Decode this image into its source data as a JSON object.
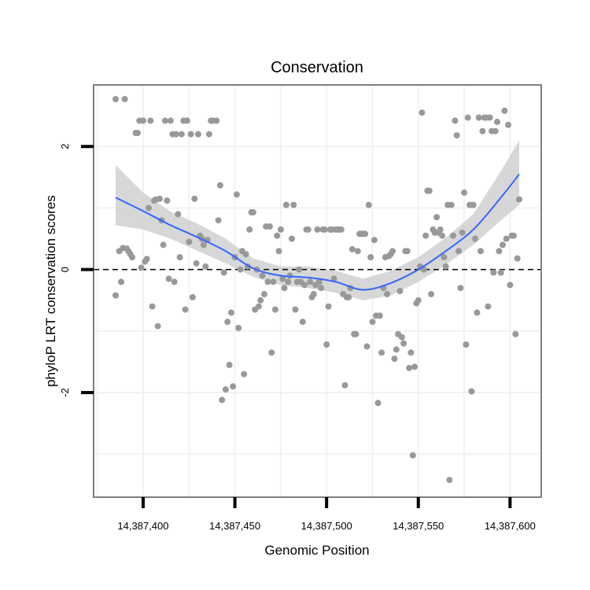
{
  "chart_data": {
    "type": "scatter",
    "title": "Conservation",
    "xlabel": "Genomic Position",
    "ylabel": "phyloP LRT conservation scores",
    "xlim": [
      14387373,
      14387617
    ],
    "ylim": [
      -3.7,
      3.0
    ],
    "grid": true,
    "x_ticks": [
      14387400,
      14387450,
      14387500,
      14387550,
      14387600
    ],
    "x_tick_labels": [
      "14,387,400",
      "14,387,450",
      "14,387,500",
      "14,387,550",
      "14,387,600"
    ],
    "y_ticks": [
      -2,
      0,
      2
    ],
    "y_tick_labels": [
      "-2",
      "0",
      "2"
    ],
    "reference_line": {
      "y": 0,
      "style": "dashed",
      "color": "#000000"
    },
    "colors": {
      "points": "#999999",
      "smooth": "#3366ff",
      "band": "#d3d3d3",
      "panel_border": "#7f7f7f",
      "grid": "#f2f2f2"
    },
    "series": [
      {
        "name": "scores",
        "points": [
          [
            14387385,
            2.77
          ],
          [
            14387390,
            2.77
          ],
          [
            14387385,
            -0.42
          ],
          [
            14387387,
            0.3
          ],
          [
            14387388,
            -0.2
          ],
          [
            14387389,
            0.35
          ],
          [
            14387391,
            0.34
          ],
          [
            14387392,
            0.3
          ],
          [
            14387393,
            0.25
          ],
          [
            14387394,
            0.2
          ],
          [
            14387396,
            2.22
          ],
          [
            14387397,
            2.22
          ],
          [
            14387398,
            2.42
          ],
          [
            14387399,
            0.03
          ],
          [
            14387400,
            2.42
          ],
          [
            14387401,
            0.13
          ],
          [
            14387402,
            0.17
          ],
          [
            14387403,
            1.0
          ],
          [
            14387404,
            2.42
          ],
          [
            14387405,
            -0.6
          ],
          [
            14387406,
            1.12
          ],
          [
            14387407,
            1.14
          ],
          [
            14387408,
            -0.92
          ],
          [
            14387409,
            1.15
          ],
          [
            14387410,
            0.8
          ],
          [
            14387411,
            0.4
          ],
          [
            14387412,
            2.42
          ],
          [
            14387413,
            1.12
          ],
          [
            14387414,
            -0.15
          ],
          [
            14387415,
            2.42
          ],
          [
            14387416,
            2.2
          ],
          [
            14387417,
            -0.2
          ],
          [
            14387418,
            2.2
          ],
          [
            14387419,
            0.9
          ],
          [
            14387420,
            0.2
          ],
          [
            14387421,
            2.2
          ],
          [
            14387422,
            2.42
          ],
          [
            14387423,
            -0.65
          ],
          [
            14387424,
            2.42
          ],
          [
            14387425,
            0.45
          ],
          [
            14387426,
            2.2
          ],
          [
            14387427,
            -0.45
          ],
          [
            14387428,
            1.15
          ],
          [
            14387429,
            0.1
          ],
          [
            14387430,
            2.2
          ],
          [
            14387431,
            0.55
          ],
          [
            14387432,
            0.5
          ],
          [
            14387433,
            0.4
          ],
          [
            14387434,
            0.05
          ],
          [
            14387435,
            0.48
          ],
          [
            14387436,
            2.2
          ],
          [
            14387437,
            2.42
          ],
          [
            14387438,
            2.42
          ],
          [
            14387440,
            2.42
          ],
          [
            14387441,
            0.8
          ],
          [
            14387442,
            1.37
          ],
          [
            14387443,
            -2.12
          ],
          [
            14387444,
            -0.05
          ],
          [
            14387445,
            -1.95
          ],
          [
            14387446,
            -0.85
          ],
          [
            14387447,
            -1.55
          ],
          [
            14387448,
            -0.7
          ],
          [
            14387449,
            -1.9
          ],
          [
            14387450,
            0.2
          ],
          [
            14387451,
            1.22
          ],
          [
            14387452,
            -0.95
          ],
          [
            14387453,
            0.0
          ],
          [
            14387454,
            0.3
          ],
          [
            14387455,
            -1.7
          ],
          [
            14387456,
            0.25
          ],
          [
            14387457,
            0.05
          ],
          [
            14387458,
            0.65
          ],
          [
            14387459,
            0.93
          ],
          [
            14387460,
            0.93
          ],
          [
            14387461,
            -0.65
          ],
          [
            14387462,
            0.0
          ],
          [
            14387463,
            -0.6
          ],
          [
            14387464,
            -0.5
          ],
          [
            14387465,
            -0.1
          ],
          [
            14387466,
            -0.4
          ],
          [
            14387467,
            0.7
          ],
          [
            14387468,
            -0.2
          ],
          [
            14387469,
            0.7
          ],
          [
            14387470,
            -1.35
          ],
          [
            14387471,
            -0.2
          ],
          [
            14387472,
            -0.65
          ],
          [
            14387473,
            0.55
          ],
          [
            14387474,
            0.3
          ],
          [
            14387475,
            0.65
          ],
          [
            14387476,
            -0.15
          ],
          [
            14387477,
            -0.3
          ],
          [
            14387478,
            1.05
          ],
          [
            14387479,
            -0.2
          ],
          [
            14387480,
            -0.1
          ],
          [
            14387481,
            0.5
          ],
          [
            14387482,
            1.05
          ],
          [
            14387483,
            -0.65
          ],
          [
            14387484,
            -0.2
          ],
          [
            14387485,
            0.0
          ],
          [
            14387486,
            -0.2
          ],
          [
            14387487,
            -0.85
          ],
          [
            14387488,
            -0.25
          ],
          [
            14387489,
            0.65
          ],
          [
            14387490,
            0.65
          ],
          [
            14387491,
            -0.2
          ],
          [
            14387492,
            -0.45
          ],
          [
            14387493,
            -0.4
          ],
          [
            14387494,
            -0.25
          ],
          [
            14387495,
            0.65
          ],
          [
            14387496,
            -0.2
          ],
          [
            14387497,
            -0.3
          ],
          [
            14387498,
            0.65
          ],
          [
            14387499,
            0.65
          ],
          [
            14387500,
            -1.22
          ],
          [
            14387501,
            -0.6
          ],
          [
            14387502,
            0.65
          ],
          [
            14387503,
            0.65
          ],
          [
            14387504,
            -0.15
          ],
          [
            14387505,
            0.65
          ],
          [
            14387506,
            0.65
          ],
          [
            14387507,
            0.65
          ],
          [
            14387508,
            0.65
          ],
          [
            14387509,
            -0.4
          ],
          [
            14387510,
            -1.88
          ],
          [
            14387511,
            -0.45
          ],
          [
            14387512,
            -0.45
          ],
          [
            14387513,
            -0.3
          ],
          [
            14387514,
            0.33
          ],
          [
            14387515,
            -1.05
          ],
          [
            14387516,
            -1.05
          ],
          [
            14387517,
            0.3
          ],
          [
            14387518,
            0.58
          ],
          [
            14387519,
            0.58
          ],
          [
            14387520,
            0.58
          ],
          [
            14387521,
            0.58
          ],
          [
            14387522,
            -1.25
          ],
          [
            14387523,
            1.05
          ],
          [
            14387524,
            0.2
          ],
          [
            14387525,
            -0.85
          ],
          [
            14387526,
            0.48
          ],
          [
            14387527,
            -0.75
          ],
          [
            14387528,
            -2.17
          ],
          [
            14387529,
            -0.75
          ],
          [
            14387530,
            -1.35
          ],
          [
            14387531,
            -0.3
          ],
          [
            14387532,
            0.2
          ],
          [
            14387533,
            -0.4
          ],
          [
            14387534,
            0.22
          ],
          [
            14387535,
            0.25
          ],
          [
            14387536,
            0.3
          ],
          [
            14387537,
            -1.45
          ],
          [
            14387538,
            -1.3
          ],
          [
            14387539,
            -1.05
          ],
          [
            14387540,
            -0.35
          ],
          [
            14387541,
            -1.1
          ],
          [
            14387542,
            -1.2
          ],
          [
            14387543,
            0.3
          ],
          [
            14387544,
            0.3
          ],
          [
            14387545,
            -1.6
          ],
          [
            14387546,
            -1.35
          ],
          [
            14387547,
            -3.02
          ],
          [
            14387548,
            -1.58
          ],
          [
            14387549,
            -0.55
          ],
          [
            14387550,
            -0.5
          ],
          [
            14387551,
            0.05
          ],
          [
            14387552,
            2.55
          ],
          [
            14387553,
            0.0
          ],
          [
            14387554,
            0.55
          ],
          [
            14387555,
            1.28
          ],
          [
            14387556,
            1.28
          ],
          [
            14387557,
            -0.4
          ],
          [
            14387558,
            0.65
          ],
          [
            14387559,
            0.6
          ],
          [
            14387560,
            0.85
          ],
          [
            14387561,
            0.6
          ],
          [
            14387562,
            0.65
          ],
          [
            14387563,
            0.55
          ],
          [
            14387564,
            0.2
          ],
          [
            14387565,
            0.05
          ],
          [
            14387566,
            1.05
          ],
          [
            14387567,
            -3.42
          ],
          [
            14387568,
            1.05
          ],
          [
            14387569,
            0.55
          ],
          [
            14387570,
            2.42
          ],
          [
            14387571,
            2.18
          ],
          [
            14387572,
            0.3
          ],
          [
            14387573,
            -0.3
          ],
          [
            14387574,
            0.6
          ],
          [
            14387575,
            1.25
          ],
          [
            14387576,
            -1.22
          ],
          [
            14387577,
            2.47
          ],
          [
            14387578,
            1.05
          ],
          [
            14387579,
            -1.98
          ],
          [
            14387580,
            1.05
          ],
          [
            14387581,
            0.5
          ],
          [
            14387582,
            -0.7
          ],
          [
            14387583,
            2.47
          ],
          [
            14387584,
            0.3
          ],
          [
            14387585,
            2.25
          ],
          [
            14387586,
            2.47
          ],
          [
            14387587,
            2.47
          ],
          [
            14387588,
            -0.6
          ],
          [
            14387589,
            2.47
          ],
          [
            14387590,
            2.25
          ],
          [
            14387591,
            -0.05
          ],
          [
            14387592,
            2.25
          ],
          [
            14387593,
            2.4
          ],
          [
            14387594,
            0.3
          ],
          [
            14387595,
            -0.05
          ],
          [
            14387596,
            0.4
          ],
          [
            14387597,
            2.58
          ],
          [
            14387598,
            0.5
          ],
          [
            14387599,
            2.35
          ],
          [
            14387600,
            -0.25
          ],
          [
            14387601,
            0.55
          ],
          [
            14387602,
            0.55
          ],
          [
            14387603,
            -1.05
          ],
          [
            14387604,
            0.18
          ],
          [
            14387605,
            1.14
          ]
        ]
      },
      {
        "name": "smooth",
        "x": [
          14387385,
          14387400,
          14387415,
          14387430,
          14387445,
          14387460,
          14387475,
          14387490,
          14387505,
          14387520,
          14387535,
          14387550,
          14387565,
          14387580,
          14387595,
          14387605
        ],
        "y": [
          1.17,
          0.95,
          0.72,
          0.52,
          0.3,
          0.02,
          -0.1,
          -0.13,
          -0.2,
          -0.33,
          -0.22,
          0.0,
          0.3,
          0.65,
          1.17,
          1.55
        ],
        "lower": [
          0.72,
          0.65,
          0.5,
          0.3,
          0.1,
          -0.12,
          -0.25,
          -0.3,
          -0.38,
          -0.5,
          -0.42,
          -0.2,
          0.08,
          0.4,
          0.8,
          1.05
        ],
        "upper": [
          1.7,
          1.25,
          0.94,
          0.74,
          0.5,
          0.18,
          0.05,
          0.05,
          -0.02,
          -0.15,
          -0.02,
          0.2,
          0.52,
          0.9,
          1.6,
          2.1
        ]
      }
    ]
  }
}
